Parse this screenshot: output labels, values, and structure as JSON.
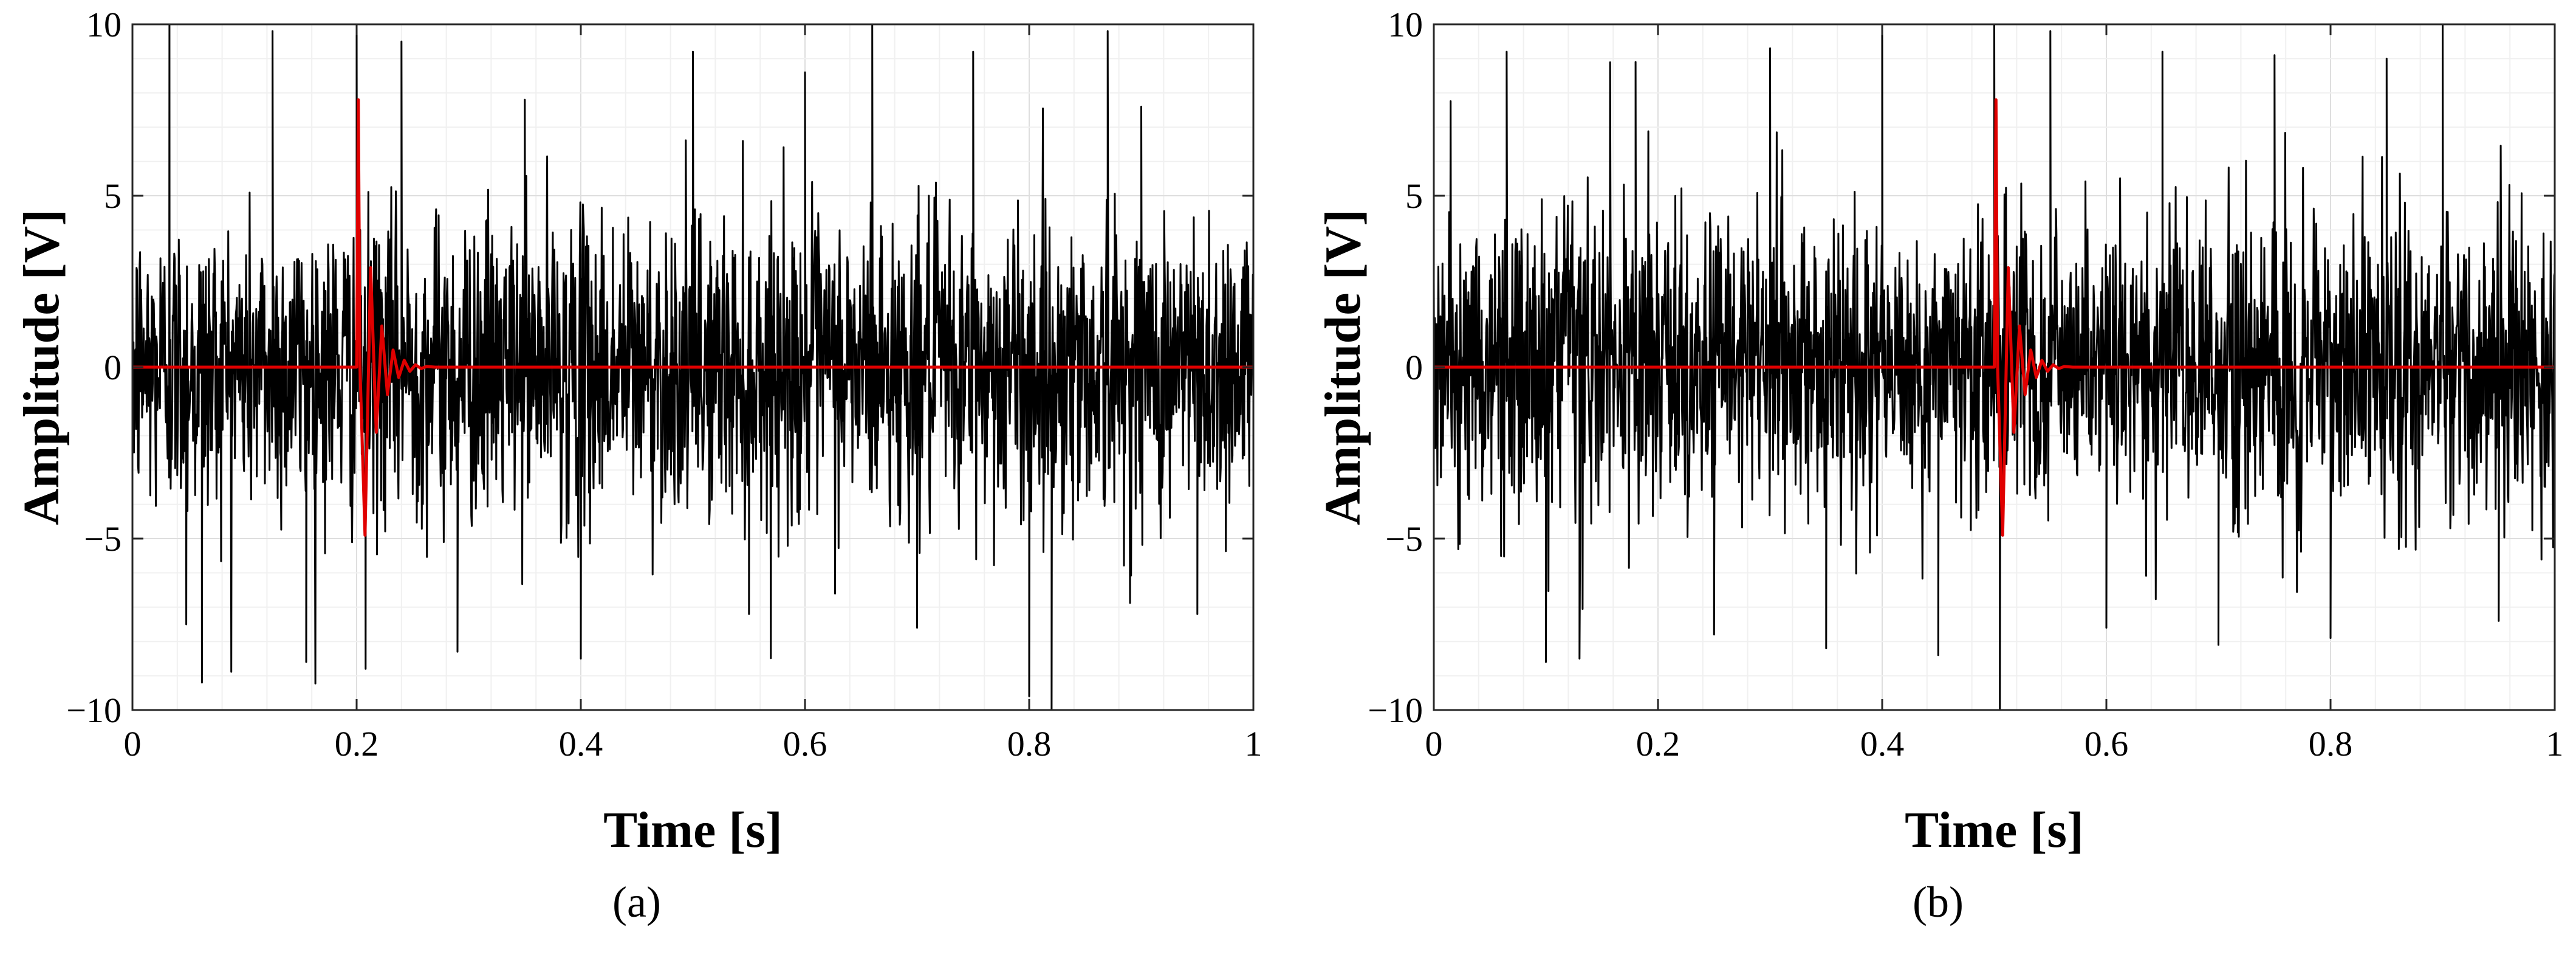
{
  "chart_data": [
    {
      "type": "line",
      "panel_label": "(a)",
      "xlabel": "Time [s]",
      "ylabel": "Amplitude [V]",
      "xlim": [
        0,
        1
      ],
      "ylim": [
        -10,
        10
      ],
      "x_ticks": [
        0,
        0.2,
        0.4,
        0.6,
        0.8,
        1
      ],
      "x_tick_labels": [
        "0",
        "0.2",
        "0.4",
        "0.6",
        "0.8",
        "1"
      ],
      "y_ticks": [
        -10,
        -5,
        0,
        5,
        10
      ],
      "y_tick_labels": [
        "−10",
        "−5",
        "0",
        "5",
        "10"
      ],
      "grid": true,
      "series": [
        {
          "color": "#000000",
          "x": [
            0,
            0.033,
            0.048,
            0.062,
            0.125,
            0.155,
            0.2,
            0.208,
            0.24,
            0.29,
            0.35,
            0.4,
            0.5,
            0.55,
            0.6,
            0.66,
            0.7,
            0.75,
            0.8,
            0.82,
            0.87,
            0.9,
            0.95,
            1
          ],
          "values": [
            2.5,
            10,
            -7.5,
            -9.2,
            9.8,
            -8.6,
            10,
            -8.8,
            9.5,
            -8.3,
            7.8,
            -8.5,
            9.2,
            -7.2,
            8.6,
            10,
            -7.6,
            9.2,
            -9.6,
            -10,
            9.8,
            7.6,
            -7.2,
            2.5
          ]
        },
        {
          "color": "#e00000",
          "x": [
            0,
            0.2,
            0.2015,
            0.203,
            0.2075,
            0.2125,
            0.2175,
            0.2225,
            0.2275,
            0.2325,
            0.2375,
            0.2425,
            0.2475,
            0.2525,
            0.2575,
            0.2625,
            0.27,
            1
          ],
          "values": [
            0,
            0,
            7.8,
            0,
            -4.9,
            2.9,
            -1.9,
            1.2,
            -0.8,
            0.5,
            -0.3,
            0.2,
            -0.12,
            0.07,
            -0.04,
            0.02,
            0,
            0
          ]
        }
      ]
    },
    {
      "type": "line",
      "panel_label": "(b)",
      "xlabel": "Time [s]",
      "ylabel": "Amplitude [V]",
      "xlim": [
        0,
        1
      ],
      "ylim": [
        -10,
        10
      ],
      "x_ticks": [
        0,
        0.2,
        0.4,
        0.6,
        0.8,
        1
      ],
      "x_tick_labels": [
        "0",
        "0.2",
        "0.4",
        "0.6",
        "0.8",
        "1"
      ],
      "y_ticks": [
        -10,
        -5,
        0,
        5,
        10
      ],
      "y_tick_labels": [
        "−10",
        "−5",
        "0",
        "5",
        "10"
      ],
      "grid": true,
      "series": [
        {
          "color": "#000000",
          "x": [
            0,
            0.065,
            0.1,
            0.13,
            0.18,
            0.25,
            0.3,
            0.35,
            0.4,
            0.45,
            0.5,
            0.505,
            0.55,
            0.6,
            0.65,
            0.7,
            0.75,
            0.8,
            0.85,
            0.9,
            0.95,
            1
          ],
          "values": [
            2.5,
            9.2,
            -8.6,
            -8.5,
            8.9,
            -7.8,
            9.3,
            -8.2,
            10,
            -8.4,
            10,
            -10,
            9.8,
            -7.6,
            9.2,
            -8.1,
            9.1,
            -7.9,
            9.0,
            10,
            -7.4,
            2.5
          ]
        },
        {
          "color": "#e00000",
          "x": [
            0,
            0.5,
            0.5015,
            0.503,
            0.5075,
            0.5125,
            0.5175,
            0.5225,
            0.5275,
            0.5325,
            0.5375,
            0.5425,
            0.5475,
            0.5525,
            0.5575,
            0.5625,
            0.57,
            1
          ],
          "values": [
            0,
            0,
            7.8,
            0,
            -4.9,
            2.9,
            -1.9,
            1.2,
            -0.8,
            0.5,
            -0.3,
            0.2,
            -0.12,
            0.07,
            -0.04,
            0.02,
            0,
            0
          ]
        }
      ]
    }
  ]
}
